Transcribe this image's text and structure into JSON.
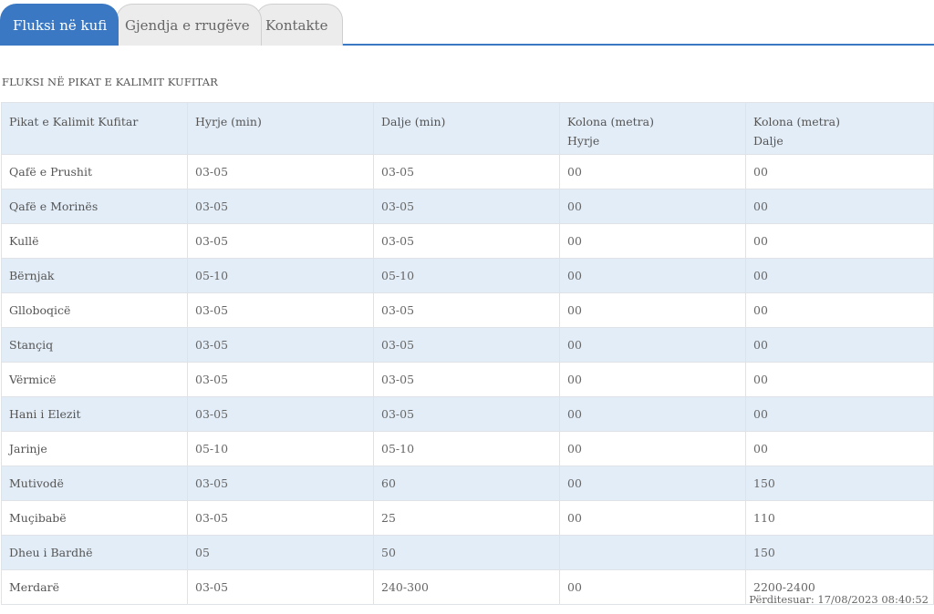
{
  "tabs": [
    {
      "label": "Fluksi në kufi",
      "active": true
    },
    {
      "label": "Gjendja e rrugëve",
      "active": false
    },
    {
      "label": "Kontakte",
      "active": false
    }
  ],
  "section_title": "FLUKSI NË PIKAT E KALIMIT KUFITAR",
  "table": {
    "headers": [
      {
        "line1": "Pikat e Kalimit Kufitar",
        "line2": ""
      },
      {
        "line1": "Hyrje (min)",
        "line2": ""
      },
      {
        "line1": "Dalje (min)",
        "line2": ""
      },
      {
        "line1": "Kolona (metra)",
        "line2": "Hyrje"
      },
      {
        "line1": "Kolona (metra)",
        "line2": "Dalje"
      }
    ],
    "rows": [
      [
        "Qafë e Prushit",
        "03-05",
        "03-05",
        "00",
        "00"
      ],
      [
        "Qafë e Morinës",
        "03-05",
        "03-05",
        "00",
        "00"
      ],
      [
        "Kullë",
        "03-05",
        "03-05",
        "00",
        "00"
      ],
      [
        "Bërnjak",
        "05-10",
        "05-10",
        "00",
        "00"
      ],
      [
        "Glloboqicë",
        "03-05",
        "03-05",
        "00",
        "00"
      ],
      [
        "Stançiq",
        "03-05",
        "03-05",
        "00",
        "00"
      ],
      [
        "Vërmicë",
        "03-05",
        "03-05",
        "00",
        "00"
      ],
      [
        "Hani i Elezit",
        "03-05",
        "03-05",
        "00",
        "00"
      ],
      [
        "Jarinje",
        "05-10",
        "05-10",
        "00",
        "00"
      ],
      [
        "Mutivodë",
        "03-05",
        "60",
        "00",
        "150"
      ],
      [
        "Muçibabë",
        "03-05",
        "25",
        "00",
        "110"
      ],
      [
        "Dheu i Bardhë",
        "05",
        "50",
        "",
        "150"
      ],
      [
        "Merdarë",
        "03-05",
        "240-300",
        "00",
        "2200-2400"
      ]
    ]
  },
  "footer": {
    "updated": "Përditesuar: 17/08/2023 08:40:52"
  },
  "colors": {
    "accent": "#3a78c3",
    "row_alt": "#e3edf7",
    "tab_inactive": "#ececec"
  }
}
